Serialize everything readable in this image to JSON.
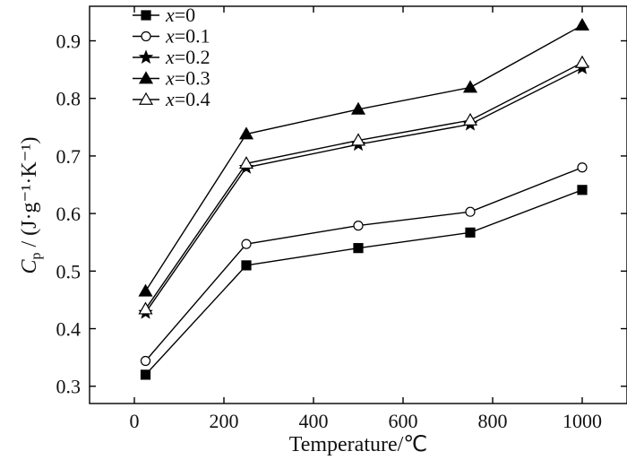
{
  "chart_data": {
    "type": "line",
    "xlabel": "Temperature/℃",
    "ylabel": {
      "symbol": "C",
      "subscript": "p",
      "unit": " / (J·g⁻¹·K⁻¹)"
    },
    "xlim": [
      -100,
      1100
    ],
    "ylim": [
      0.27,
      0.96
    ],
    "xticks": [
      0,
      200,
      400,
      600,
      800,
      1000
    ],
    "yticks": [
      0.3,
      0.4,
      0.5,
      0.6,
      0.7,
      0.8,
      0.9
    ],
    "legend_position": "top-left",
    "grid": false,
    "x": [
      25,
      250,
      500,
      750,
      1000
    ],
    "series": [
      {
        "name": "x=0",
        "legend_var": "x",
        "legend_value": "=0",
        "marker": "square-filled",
        "values": [
          0.32,
          0.51,
          0.54,
          0.567,
          0.641
        ]
      },
      {
        "name": "x=0.1",
        "legend_var": "x",
        "legend_value": "=0.1",
        "marker": "circle-open",
        "values": [
          0.344,
          0.547,
          0.579,
          0.603,
          0.68
        ]
      },
      {
        "name": "x=0.2",
        "legend_var": "x",
        "legend_value": "=0.2",
        "marker": "star-filled",
        "values": [
          0.428,
          0.68,
          0.72,
          0.755,
          0.853
        ]
      },
      {
        "name": "x=0.3",
        "legend_var": "x",
        "legend_value": "=0.3",
        "marker": "triangle-filled",
        "values": [
          0.465,
          0.738,
          0.781,
          0.819,
          0.927
        ]
      },
      {
        "name": "x=0.4",
        "legend_var": "x",
        "legend_value": "=0.4",
        "marker": "triangle-open",
        "values": [
          0.434,
          0.687,
          0.727,
          0.762,
          0.862
        ]
      }
    ]
  }
}
